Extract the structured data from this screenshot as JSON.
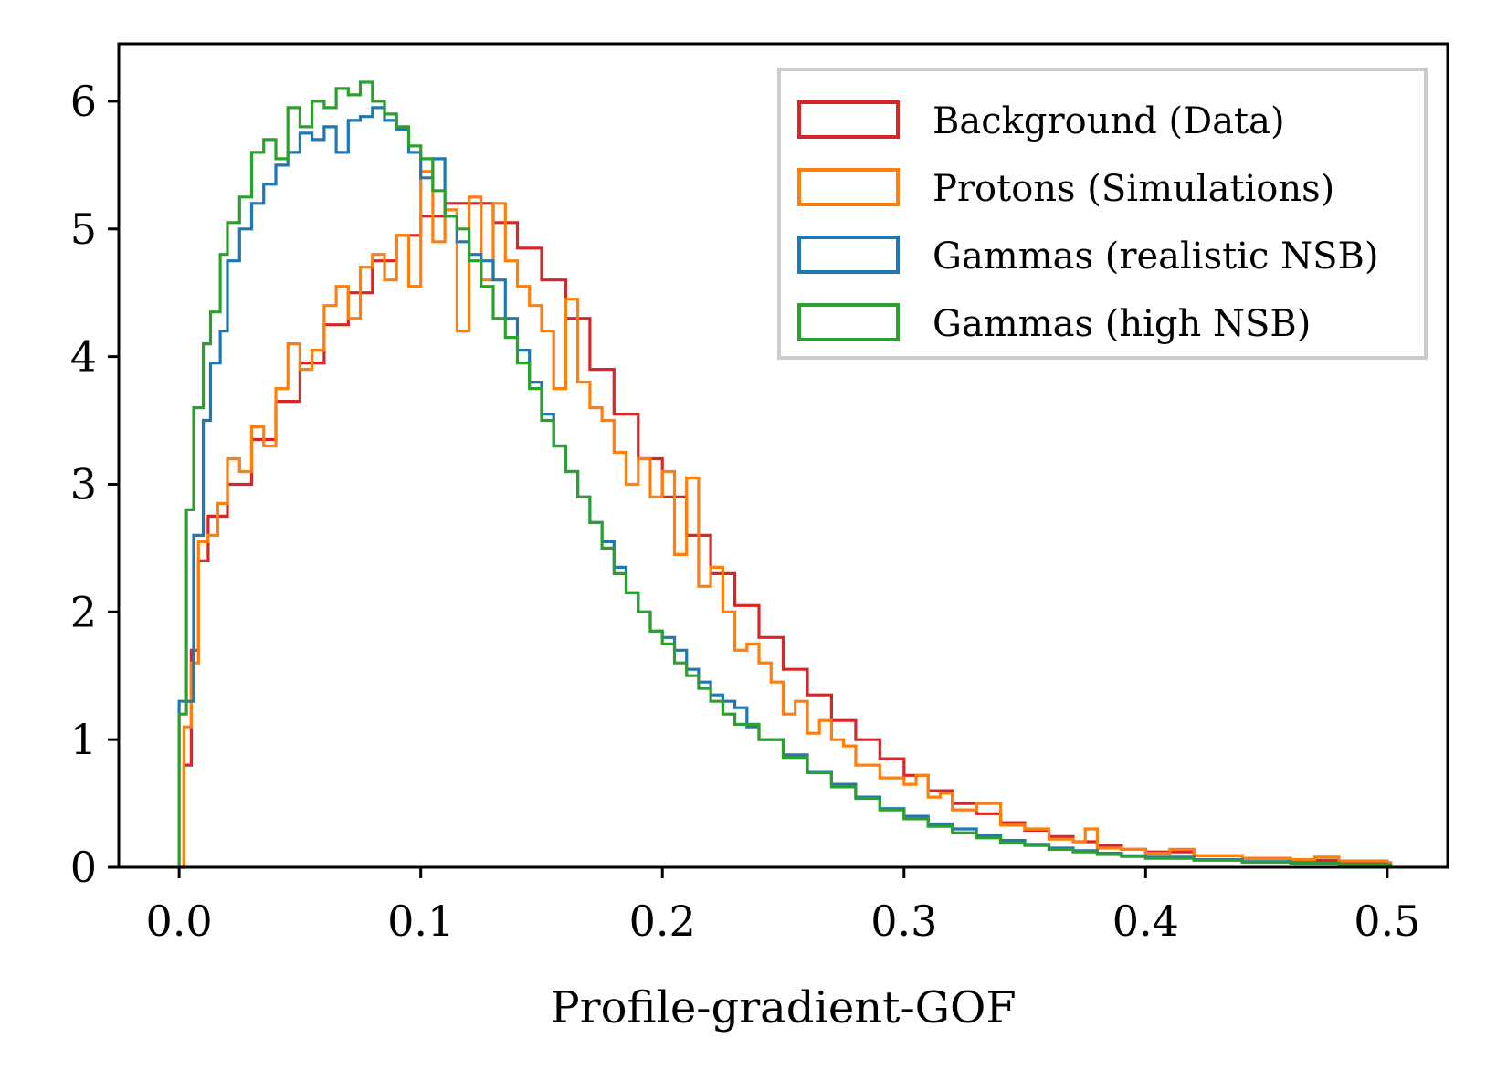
{
  "chart_data": {
    "type": "histogram-step",
    "title": "",
    "xlabel": "Profile-gradient-GOF",
    "ylabel": "",
    "xlim": [
      -0.025,
      0.525
    ],
    "ylim": [
      0,
      6.45
    ],
    "xticks": [
      0.0,
      0.1,
      0.2,
      0.3,
      0.4,
      0.5
    ],
    "xtick_labels": [
      "0.0",
      "0.1",
      "0.2",
      "0.3",
      "0.4",
      "0.5"
    ],
    "yticks": [
      0,
      1,
      2,
      3,
      4,
      5,
      6
    ],
    "ytick_labels": [
      "0",
      "1",
      "2",
      "3",
      "4",
      "5",
      "6"
    ],
    "grid": false,
    "legend_position": "top-right",
    "series": [
      {
        "name": "Background (Data)",
        "color": "#d62728",
        "points": [
          [
            0.0,
            0.0
          ],
          [
            0.002,
            0.8
          ],
          [
            0.005,
            1.7
          ],
          [
            0.008,
            2.4
          ],
          [
            0.012,
            2.75
          ],
          [
            0.02,
            3.0
          ],
          [
            0.03,
            3.35
          ],
          [
            0.04,
            3.65
          ],
          [
            0.05,
            3.95
          ],
          [
            0.06,
            4.25
          ],
          [
            0.07,
            4.5
          ],
          [
            0.08,
            4.75
          ],
          [
            0.09,
            4.95
          ],
          [
            0.1,
            5.1
          ],
          [
            0.11,
            5.2
          ],
          [
            0.12,
            5.2
          ],
          [
            0.13,
            5.05
          ],
          [
            0.14,
            4.85
          ],
          [
            0.15,
            4.6
          ],
          [
            0.16,
            4.3
          ],
          [
            0.17,
            3.9
          ],
          [
            0.18,
            3.55
          ],
          [
            0.19,
            3.2
          ],
          [
            0.2,
            2.9
          ],
          [
            0.21,
            2.6
          ],
          [
            0.22,
            2.3
          ],
          [
            0.23,
            2.05
          ],
          [
            0.24,
            1.8
          ],
          [
            0.25,
            1.55
          ],
          [
            0.26,
            1.35
          ],
          [
            0.27,
            1.15
          ],
          [
            0.28,
            1.0
          ],
          [
            0.29,
            0.85
          ],
          [
            0.3,
            0.72
          ],
          [
            0.31,
            0.6
          ],
          [
            0.32,
            0.5
          ],
          [
            0.33,
            0.42
          ],
          [
            0.34,
            0.35
          ],
          [
            0.35,
            0.29
          ],
          [
            0.36,
            0.24
          ],
          [
            0.37,
            0.2
          ],
          [
            0.38,
            0.17
          ],
          [
            0.39,
            0.14
          ],
          [
            0.4,
            0.12
          ],
          [
            0.42,
            0.09
          ],
          [
            0.44,
            0.07
          ],
          [
            0.46,
            0.055
          ],
          [
            0.48,
            0.045
          ],
          [
            0.5,
            0.035
          ]
        ]
      },
      {
        "name": "Protons (Simulations)",
        "color": "#ff7f0e",
        "points": [
          [
            0.0,
            0.0
          ],
          [
            0.002,
            1.1
          ],
          [
            0.005,
            1.6
          ],
          [
            0.008,
            2.55
          ],
          [
            0.012,
            2.6
          ],
          [
            0.016,
            2.85
          ],
          [
            0.02,
            3.2
          ],
          [
            0.025,
            3.1
          ],
          [
            0.03,
            3.45
          ],
          [
            0.035,
            3.3
          ],
          [
            0.04,
            3.75
          ],
          [
            0.045,
            4.1
          ],
          [
            0.05,
            3.9
          ],
          [
            0.055,
            4.05
          ],
          [
            0.06,
            4.4
          ],
          [
            0.065,
            4.55
          ],
          [
            0.07,
            4.3
          ],
          [
            0.075,
            4.7
          ],
          [
            0.08,
            4.8
          ],
          [
            0.085,
            4.6
          ],
          [
            0.09,
            4.95
          ],
          [
            0.095,
            4.55
          ],
          [
            0.1,
            5.45
          ],
          [
            0.105,
            4.9
          ],
          [
            0.11,
            5.15
          ],
          [
            0.115,
            4.2
          ],
          [
            0.12,
            5.25
          ],
          [
            0.125,
            4.6
          ],
          [
            0.13,
            5.2
          ],
          [
            0.135,
            4.75
          ],
          [
            0.14,
            4.55
          ],
          [
            0.145,
            4.4
          ],
          [
            0.15,
            4.2
          ],
          [
            0.155,
            3.75
          ],
          [
            0.16,
            4.45
          ],
          [
            0.165,
            3.8
          ],
          [
            0.17,
            3.6
          ],
          [
            0.175,
            3.5
          ],
          [
            0.18,
            3.25
          ],
          [
            0.185,
            3.0
          ],
          [
            0.19,
            3.2
          ],
          [
            0.195,
            2.9
          ],
          [
            0.2,
            3.1
          ],
          [
            0.205,
            2.45
          ],
          [
            0.21,
            3.05
          ],
          [
            0.215,
            2.2
          ],
          [
            0.22,
            2.35
          ],
          [
            0.225,
            2.0
          ],
          [
            0.23,
            1.7
          ],
          [
            0.235,
            1.75
          ],
          [
            0.24,
            1.6
          ],
          [
            0.245,
            1.45
          ],
          [
            0.25,
            1.2
          ],
          [
            0.255,
            1.3
          ],
          [
            0.26,
            1.05
          ],
          [
            0.265,
            1.15
          ],
          [
            0.27,
            1.0
          ],
          [
            0.275,
            0.95
          ],
          [
            0.28,
            0.8
          ],
          [
            0.29,
            0.7
          ],
          [
            0.3,
            0.65
          ],
          [
            0.305,
            0.72
          ],
          [
            0.31,
            0.55
          ],
          [
            0.315,
            0.58
          ],
          [
            0.32,
            0.45
          ],
          [
            0.33,
            0.5
          ],
          [
            0.34,
            0.33
          ],
          [
            0.35,
            0.3
          ],
          [
            0.36,
            0.22
          ],
          [
            0.37,
            0.2
          ],
          [
            0.375,
            0.3
          ],
          [
            0.38,
            0.15
          ],
          [
            0.39,
            0.14
          ],
          [
            0.4,
            0.11
          ],
          [
            0.41,
            0.14
          ],
          [
            0.42,
            0.09
          ],
          [
            0.44,
            0.07
          ],
          [
            0.46,
            0.06
          ],
          [
            0.47,
            0.08
          ],
          [
            0.48,
            0.05
          ],
          [
            0.5,
            0.03
          ]
        ]
      },
      {
        "name": "Gammas (realistic NSB)",
        "color": "#1f77b4",
        "points": [
          [
            0.0,
            1.3
          ],
          [
            0.003,
            1.3
          ],
          [
            0.006,
            2.6
          ],
          [
            0.01,
            3.5
          ],
          [
            0.013,
            3.95
          ],
          [
            0.017,
            4.2
          ],
          [
            0.02,
            4.75
          ],
          [
            0.025,
            5.0
          ],
          [
            0.03,
            5.2
          ],
          [
            0.035,
            5.35
          ],
          [
            0.04,
            5.5
          ],
          [
            0.045,
            5.6
          ],
          [
            0.05,
            5.75
          ],
          [
            0.055,
            5.7
          ],
          [
            0.06,
            5.8
          ],
          [
            0.065,
            5.6
          ],
          [
            0.07,
            5.85
          ],
          [
            0.075,
            5.88
          ],
          [
            0.08,
            5.95
          ],
          [
            0.085,
            5.85
          ],
          [
            0.09,
            5.78
          ],
          [
            0.095,
            5.6
          ],
          [
            0.1,
            5.4
          ],
          [
            0.105,
            5.55
          ],
          [
            0.11,
            5.1
          ],
          [
            0.115,
            4.9
          ],
          [
            0.12,
            4.8
          ],
          [
            0.125,
            4.75
          ],
          [
            0.13,
            4.6
          ],
          [
            0.135,
            4.3
          ],
          [
            0.14,
            4.05
          ],
          [
            0.145,
            3.8
          ],
          [
            0.15,
            3.55
          ],
          [
            0.155,
            3.3
          ],
          [
            0.16,
            3.1
          ],
          [
            0.165,
            2.9
          ],
          [
            0.17,
            2.7
          ],
          [
            0.175,
            2.55
          ],
          [
            0.18,
            2.35
          ],
          [
            0.185,
            2.15
          ],
          [
            0.19,
            2.0
          ],
          [
            0.195,
            1.85
          ],
          [
            0.2,
            1.8
          ],
          [
            0.205,
            1.7
          ],
          [
            0.21,
            1.55
          ],
          [
            0.215,
            1.45
          ],
          [
            0.22,
            1.35
          ],
          [
            0.225,
            1.3
          ],
          [
            0.23,
            1.25
          ],
          [
            0.235,
            1.1
          ],
          [
            0.24,
            1.0
          ],
          [
            0.25,
            0.88
          ],
          [
            0.26,
            0.75
          ],
          [
            0.27,
            0.65
          ],
          [
            0.28,
            0.55
          ],
          [
            0.29,
            0.46
          ],
          [
            0.3,
            0.4
          ],
          [
            0.31,
            0.34
          ],
          [
            0.32,
            0.3
          ],
          [
            0.33,
            0.25
          ],
          [
            0.34,
            0.21
          ],
          [
            0.35,
            0.18
          ],
          [
            0.36,
            0.15
          ],
          [
            0.37,
            0.13
          ],
          [
            0.38,
            0.11
          ],
          [
            0.39,
            0.09
          ],
          [
            0.4,
            0.08
          ],
          [
            0.42,
            0.06
          ],
          [
            0.44,
            0.045
          ],
          [
            0.46,
            0.035
          ],
          [
            0.48,
            0.025
          ],
          [
            0.5,
            0.02
          ]
        ]
      },
      {
        "name": "Gammas (high NSB)",
        "color": "#2ca02c",
        "points": [
          [
            0.0,
            1.2
          ],
          [
            0.003,
            2.8
          ],
          [
            0.006,
            3.6
          ],
          [
            0.01,
            4.1
          ],
          [
            0.013,
            4.35
          ],
          [
            0.017,
            4.8
          ],
          [
            0.02,
            5.05
          ],
          [
            0.025,
            5.25
          ],
          [
            0.03,
            5.6
          ],
          [
            0.035,
            5.7
          ],
          [
            0.04,
            5.55
          ],
          [
            0.045,
            5.95
          ],
          [
            0.05,
            5.8
          ],
          [
            0.055,
            6.0
          ],
          [
            0.06,
            5.95
          ],
          [
            0.065,
            6.1
          ],
          [
            0.07,
            6.05
          ],
          [
            0.075,
            6.15
          ],
          [
            0.08,
            6.0
          ],
          [
            0.085,
            5.9
          ],
          [
            0.09,
            5.8
          ],
          [
            0.095,
            5.65
          ],
          [
            0.1,
            5.55
          ],
          [
            0.105,
            5.3
          ],
          [
            0.11,
            5.1
          ],
          [
            0.115,
            5.0
          ],
          [
            0.12,
            4.75
          ],
          [
            0.125,
            4.55
          ],
          [
            0.13,
            4.3
          ],
          [
            0.135,
            4.15
          ],
          [
            0.14,
            3.95
          ],
          [
            0.145,
            3.75
          ],
          [
            0.15,
            3.5
          ],
          [
            0.155,
            3.3
          ],
          [
            0.16,
            3.1
          ],
          [
            0.165,
            2.9
          ],
          [
            0.17,
            2.7
          ],
          [
            0.175,
            2.5
          ],
          [
            0.18,
            2.3
          ],
          [
            0.185,
            2.15
          ],
          [
            0.19,
            2.0
          ],
          [
            0.195,
            1.85
          ],
          [
            0.2,
            1.75
          ],
          [
            0.205,
            1.6
          ],
          [
            0.21,
            1.5
          ],
          [
            0.215,
            1.4
          ],
          [
            0.22,
            1.3
          ],
          [
            0.225,
            1.2
          ],
          [
            0.23,
            1.12
          ],
          [
            0.24,
            1.0
          ],
          [
            0.25,
            0.86
          ],
          [
            0.26,
            0.74
          ],
          [
            0.27,
            0.63
          ],
          [
            0.28,
            0.54
          ],
          [
            0.29,
            0.45
          ],
          [
            0.3,
            0.38
          ],
          [
            0.31,
            0.32
          ],
          [
            0.32,
            0.27
          ],
          [
            0.33,
            0.23
          ],
          [
            0.34,
            0.19
          ],
          [
            0.35,
            0.17
          ],
          [
            0.36,
            0.14
          ],
          [
            0.37,
            0.12
          ],
          [
            0.38,
            0.1
          ],
          [
            0.39,
            0.085
          ],
          [
            0.4,
            0.07
          ],
          [
            0.42,
            0.055
          ],
          [
            0.44,
            0.04
          ],
          [
            0.46,
            0.03
          ],
          [
            0.48,
            0.022
          ],
          [
            0.5,
            0.015
          ]
        ]
      }
    ]
  }
}
